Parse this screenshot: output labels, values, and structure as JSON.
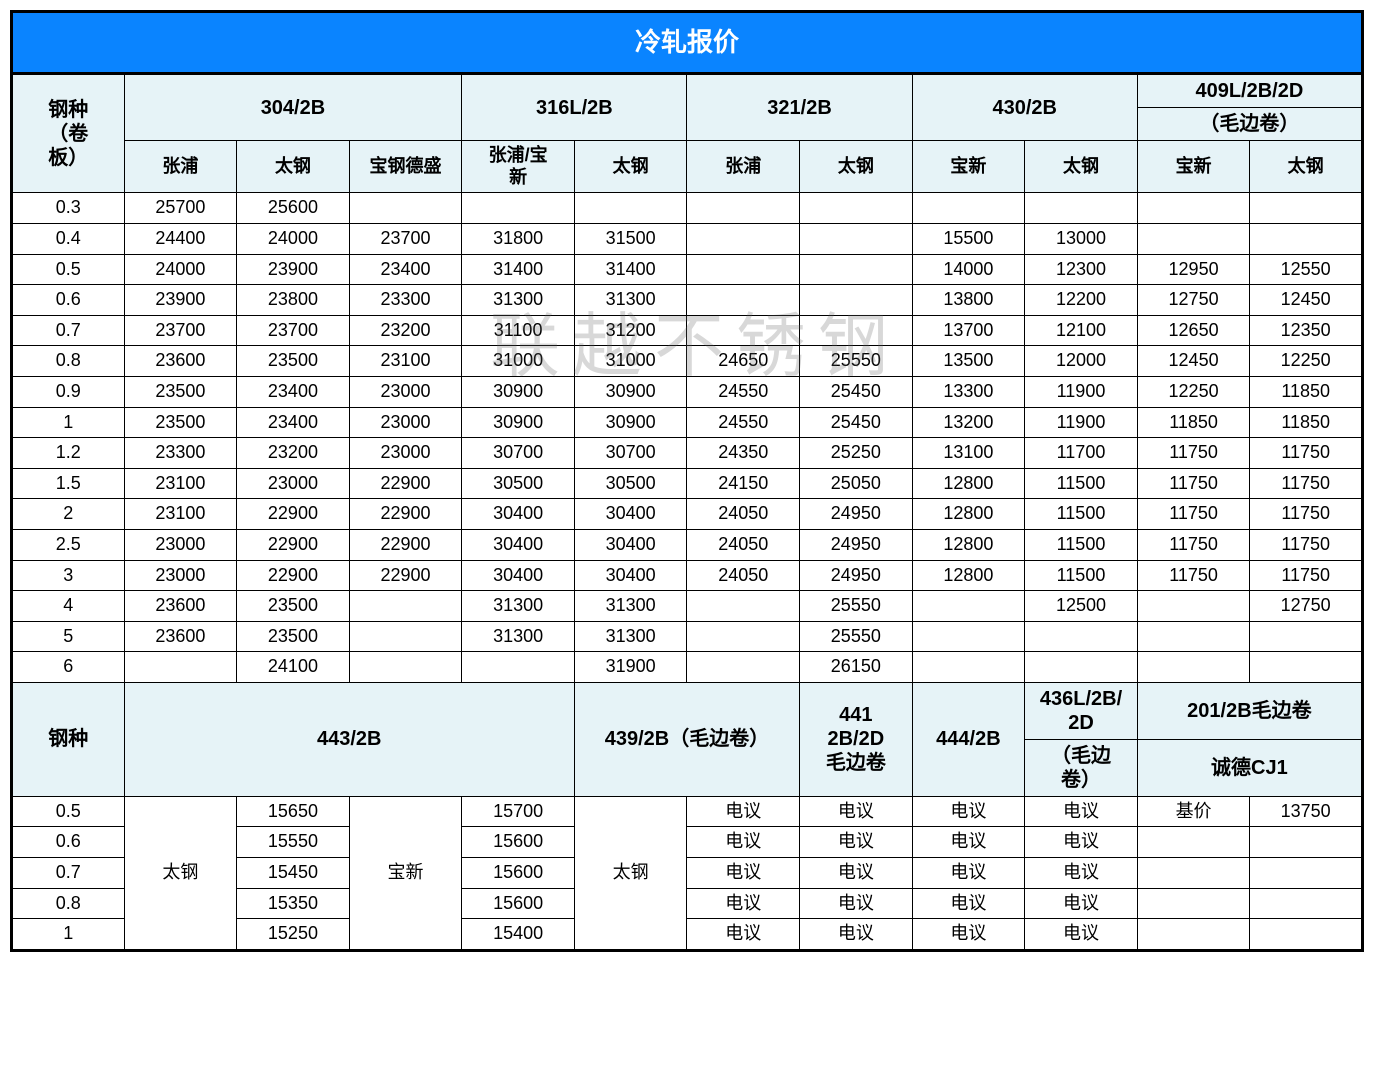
{
  "title": "冷轧报价",
  "watermark": "联越不锈钢",
  "colors": {
    "header_bg": "#0a84ff",
    "header_fg": "#ffffff",
    "group_bg": "#e6f3f7",
    "border": "#000000",
    "cell_bg": "#ffffff"
  },
  "fonts": {
    "title": 26,
    "group": 20,
    "sub": 18,
    "cell": 18
  },
  "section1": {
    "row_header": "钢种\n（卷\n板）",
    "groups": [
      {
        "label": "304/2B",
        "subs": [
          "张浦",
          "太钢",
          "宝钢德盛"
        ]
      },
      {
        "label": "316L/2B",
        "subs": [
          "张浦/宝\n新",
          "太钢"
        ]
      },
      {
        "label": "321/2B",
        "subs": [
          "张浦",
          "太钢"
        ]
      },
      {
        "label": "430/2B",
        "subs": [
          "宝新",
          "太钢"
        ]
      },
      {
        "label": "409L/2B/2D",
        "note": "（毛边卷）",
        "subs": [
          "宝新",
          "太钢"
        ]
      }
    ],
    "rows": [
      {
        "t": "0.3",
        "c": [
          "25700",
          "25600",
          "",
          "",
          "",
          "",
          "",
          "",
          "",
          "",
          ""
        ]
      },
      {
        "t": "0.4",
        "c": [
          "24400",
          "24000",
          "23700",
          "31800",
          "31500",
          "",
          "",
          "15500",
          "13000",
          "",
          ""
        ]
      },
      {
        "t": "0.5",
        "c": [
          "24000",
          "23900",
          "23400",
          "31400",
          "31400",
          "",
          "",
          "14000",
          "12300",
          "12950",
          "12550"
        ]
      },
      {
        "t": "0.6",
        "c": [
          "23900",
          "23800",
          "23300",
          "31300",
          "31300",
          "",
          "",
          "13800",
          "12200",
          "12750",
          "12450"
        ]
      },
      {
        "t": "0.7",
        "c": [
          "23700",
          "23700",
          "23200",
          "31100",
          "31200",
          "",
          "",
          "13700",
          "12100",
          "12650",
          "12350"
        ]
      },
      {
        "t": "0.8",
        "c": [
          "23600",
          "23500",
          "23100",
          "31000",
          "31000",
          "24650",
          "25550",
          "13500",
          "12000",
          "12450",
          "12250"
        ]
      },
      {
        "t": "0.9",
        "c": [
          "23500",
          "23400",
          "23000",
          "30900",
          "30900",
          "24550",
          "25450",
          "13300",
          "11900",
          "12250",
          "11850"
        ]
      },
      {
        "t": "1",
        "c": [
          "23500",
          "23400",
          "23000",
          "30900",
          "30900",
          "24550",
          "25450",
          "13200",
          "11900",
          "11850",
          "11850"
        ]
      },
      {
        "t": "1.2",
        "c": [
          "23300",
          "23200",
          "23000",
          "30700",
          "30700",
          "24350",
          "25250",
          "13100",
          "11700",
          "11750",
          "11750"
        ]
      },
      {
        "t": "1.5",
        "c": [
          "23100",
          "23000",
          "22900",
          "30500",
          "30500",
          "24150",
          "25050",
          "12800",
          "11500",
          "11750",
          "11750"
        ]
      },
      {
        "t": "2",
        "c": [
          "23100",
          "22900",
          "22900",
          "30400",
          "30400",
          "24050",
          "24950",
          "12800",
          "11500",
          "11750",
          "11750"
        ]
      },
      {
        "t": "2.5",
        "c": [
          "23000",
          "22900",
          "22900",
          "30400",
          "30400",
          "24050",
          "24950",
          "12800",
          "11500",
          "11750",
          "11750"
        ]
      },
      {
        "t": "3",
        "c": [
          "23000",
          "22900",
          "22900",
          "30400",
          "30400",
          "24050",
          "24950",
          "12800",
          "11500",
          "11750",
          "11750"
        ]
      },
      {
        "t": "4",
        "c": [
          "23600",
          "23500",
          "",
          "31300",
          "31300",
          "",
          "25550",
          "",
          "12500",
          "",
          "12750"
        ]
      },
      {
        "t": "5",
        "c": [
          "23600",
          "23500",
          "",
          "31300",
          "31300",
          "",
          "25550",
          "",
          "",
          "",
          ""
        ]
      },
      {
        "t": "6",
        "c": [
          "",
          "24100",
          "",
          "",
          "31900",
          "",
          "26150",
          "",
          "",
          "",
          ""
        ]
      }
    ]
  },
  "section2": {
    "row_header": "钢种",
    "groups": [
      {
        "label": "443/2B",
        "span": 4
      },
      {
        "label": "439/2B（毛边卷）",
        "span": 2
      },
      {
        "label": "441\n2B/2D\n毛边卷",
        "span": 1
      },
      {
        "label": "444/2B",
        "span": 1
      },
      {
        "label": "436L/2B/\n2D",
        "note": "（毛边\n卷）",
        "span": 1
      },
      {
        "label": "201/2B毛边卷",
        "note": "诚德CJ1",
        "span": 2
      }
    ],
    "merge_labels": {
      "c1": "太钢",
      "c3": "宝新",
      "c5": "太钢"
    },
    "rows": [
      {
        "t": "0.5",
        "c": [
          "",
          "15650",
          "",
          "15700",
          "",
          "电议",
          "电议",
          "电议",
          "电议",
          "基价",
          "13750"
        ]
      },
      {
        "t": "0.6",
        "c": [
          "",
          "15550",
          "",
          "15600",
          "",
          "电议",
          "电议",
          "电议",
          "电议",
          "",
          ""
        ]
      },
      {
        "t": "0.7",
        "c": [
          "",
          "15450",
          "",
          "15600",
          "",
          "电议",
          "电议",
          "电议",
          "电议",
          "",
          ""
        ]
      },
      {
        "t": "0.8",
        "c": [
          "",
          "15350",
          "",
          "15600",
          "",
          "电议",
          "电议",
          "电议",
          "电议",
          "",
          ""
        ]
      },
      {
        "t": "1",
        "c": [
          "",
          "15250",
          "",
          "15400",
          "",
          "电议",
          "电议",
          "电议",
          "电议",
          "",
          ""
        ]
      }
    ]
  }
}
